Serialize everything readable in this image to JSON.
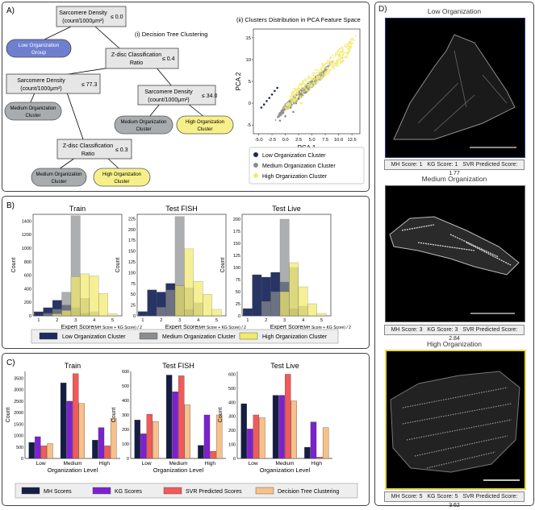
{
  "panelA": {
    "label": "A)",
    "tree_title": "(i) Decision Tree Clustering",
    "pca_title": "(ii) Clusters Distribution in PCA Feature Space",
    "nodes": {
      "n1_l1": "Sarcomere Density",
      "n1_l2": "(count/1000μm²)",
      "n1_op": "≤ 0.0",
      "leaf_low_l1": "Low Organization",
      "leaf_low_l2": "Group",
      "n2_l1": "Z-disc Classification",
      "n2_l2": "Ratio",
      "n2_op": "≤ 0.4",
      "n3_l1": "Sarcomere Density",
      "n3_l2": "(count/1000μm²)",
      "n3_op": "≤ 77.3",
      "n4_l1": "Sarcomere Density",
      "n4_l2": "(count/1000μm²)",
      "n4_op": "≤ 34.0",
      "leaf_med1_l1": "Medium Organization",
      "leaf_med1_l2": "Cluster",
      "leaf_med2_l1": "Medium Organization",
      "leaf_med2_l2": "Cluster",
      "leaf_high1_l1": "High Organization",
      "leaf_high1_l2": "Cluster",
      "n5_l1": "Z-disc Classification",
      "n5_l2": "Ratio",
      "n5_op": "≤ 0.3",
      "leaf_med3_l1": "Medium Organization",
      "leaf_med3_l2": "Cluster",
      "leaf_high2_l1": "High Organization",
      "leaf_high2_l2": "Cluster"
    },
    "pca": {
      "xlabel": "PCA 1",
      "ylabel": "PCA 2",
      "xticks": [
        "-5.0",
        "-2.5",
        "0.0",
        "2.5",
        "5.0",
        "7.5",
        "10.0",
        "12.5"
      ],
      "legend": [
        "Low Organization Cluster",
        "Medium Organization Cluster",
        "High Organization Cluster"
      ]
    }
  },
  "panelB": {
    "label": "B)",
    "xlabel": "Expert Score",
    "xlabel_sub": "(MH Score + KG Score) / 2",
    "ylabel": "Count",
    "legend": [
      "Low Organization Cluster",
      "Medium Organization Cluster",
      "High Organization Cluster"
    ]
  },
  "panelC": {
    "label": "C)",
    "xlabel": "Organization Level",
    "ylabel": "Count",
    "legend": [
      "MH Scores",
      "KG Scores",
      "SVR Predicted Scores",
      "Decision Tree Clustering"
    ]
  },
  "panelD": {
    "label": "D)",
    "images": [
      {
        "title": "Low Organization",
        "mh": "MH Score: 1",
        "kg": "KG Score: 1",
        "svr": "SVR Predicted Score: 1.77"
      },
      {
        "title": "Medium Organization",
        "mh": "MH Score: 3",
        "kg": "KG Score: 3",
        "svr": "SVR Predicted Score: 2.84"
      },
      {
        "title": "High Organization",
        "mh": "MH Score: 5",
        "kg": "KG Score: 5",
        "svr": "SVR Predicted Score: 3.62"
      }
    ]
  },
  "colors": {
    "low": "#1c2a5c",
    "medium": "#8a8d8f",
    "high": "#f2ea6a",
    "mh": "#151d44",
    "kg": "#7b22d0",
    "svr": "#f05a5a",
    "dt": "#f8c08a"
  },
  "chart_data": [
    {
      "type": "scatter",
      "title": "(ii) Clusters Distribution in PCA Feature Space",
      "xlabel": "PCA 1",
      "ylabel": "PCA 2",
      "xlim": [
        -6,
        14
      ],
      "ylim": [
        -7,
        17
      ],
      "series": [
        {
          "name": "Low Organization Cluster",
          "x": [
            -4.5,
            -4.0,
            -3.5,
            -3.0,
            -2.5,
            -2.0,
            -1.5
          ],
          "y": [
            -1.0,
            -0.3,
            0.5,
            1.2,
            2.0,
            2.8,
            3.5
          ]
        },
        {
          "name": "Medium Organization Cluster",
          "x": [
            -1,
            0,
            1,
            2,
            3,
            4,
            5,
            -0.5,
            1.5,
            2.5
          ],
          "y": [
            -4,
            -3,
            -1,
            0,
            2,
            3,
            5,
            -2,
            -2,
            1
          ]
        },
        {
          "name": "High Organization Cluster",
          "x": [
            0,
            2,
            4,
            6,
            8,
            10,
            12,
            3,
            5,
            7
          ],
          "y": [
            -1,
            1,
            3,
            6,
            8,
            11,
            14,
            0,
            4,
            9
          ]
        }
      ]
    },
    {
      "type": "bar",
      "title": "Train",
      "categories": [
        "1",
        "1.5",
        "2",
        "2.5",
        "3",
        "3.5",
        "4",
        "4.5",
        "5"
      ],
      "series": [
        {
          "name": "Low Organization Cluster",
          "values": [
            60,
            120,
            230,
            160,
            120,
            40,
            0,
            0,
            0
          ]
        },
        {
          "name": "Medium Organization Cluster",
          "values": [
            0,
            40,
            100,
            350,
            1480,
            260,
            60,
            0,
            0
          ]
        },
        {
          "name": "High Organization Cluster",
          "values": [
            0,
            0,
            30,
            80,
            580,
            620,
            590,
            330,
            30
          ]
        }
      ],
      "xlabel": "Expert Score (MH Score + KG Score) / 2",
      "ylabel": "Count",
      "ylim": [
        0,
        1500
      ],
      "yticks": [
        0,
        200,
        400,
        600,
        800,
        1000,
        1200,
        1400
      ]
    },
    {
      "type": "bar",
      "title": "Test FISH",
      "categories": [
        "1",
        "1.5",
        "2",
        "2.5",
        "3",
        "3.5",
        "4",
        "4.5",
        "5"
      ],
      "series": [
        {
          "name": "Low Organization Cluster",
          "values": [
            10,
            60,
            55,
            75,
            70,
            15,
            0,
            0,
            0
          ]
        },
        {
          "name": "Medium Organization Cluster",
          "values": [
            0,
            0,
            20,
            60,
            230,
            65,
            30,
            0,
            0
          ]
        },
        {
          "name": "High Organization Cluster",
          "values": [
            0,
            0,
            0,
            0,
            70,
            155,
            80,
            50,
            15
          ]
        }
      ],
      "xlabel": "Expert Score (MH Score + KG Score) / 2",
      "ylabel": "Count",
      "ylim": [
        0,
        235
      ],
      "yticks": [
        0,
        25,
        50,
        75,
        100,
        125,
        150,
        175,
        200,
        225
      ]
    },
    {
      "type": "bar",
      "title": "Test Live",
      "categories": [
        "1",
        "1.5",
        "2",
        "2.5",
        "3",
        "3.5",
        "4",
        "4.5",
        "5"
      ],
      "series": [
        {
          "name": "Low Organization Cluster",
          "values": [
            15,
            85,
            80,
            90,
            70,
            15,
            0,
            0,
            0
          ]
        },
        {
          "name": "Medium Organization Cluster",
          "values": [
            0,
            0,
            30,
            50,
            200,
            100,
            20,
            0,
            0
          ]
        },
        {
          "name": "High Organization Cluster",
          "values": [
            0,
            0,
            0,
            0,
            50,
            110,
            60,
            25,
            5
          ]
        }
      ],
      "xlabel": "Expert Score (MH Score + KG Score) / 2",
      "ylabel": "Count",
      "ylim": [
        0,
        210
      ],
      "yticks": [
        0,
        25,
        50,
        75,
        100,
        125,
        150,
        175,
        200
      ]
    },
    {
      "type": "bar",
      "title": "Train",
      "categories": [
        "Low",
        "Medium",
        "High"
      ],
      "series": [
        {
          "name": "MH Scores",
          "values": [
            700,
            3300,
            800
          ]
        },
        {
          "name": "KG Scores",
          "values": [
            950,
            2500,
            1350
          ]
        },
        {
          "name": "SVR Predicted Scores",
          "values": [
            550,
            3700,
            550
          ]
        },
        {
          "name": "Decision Tree Clustering",
          "values": [
            650,
            2400,
            1750
          ]
        }
      ],
      "xlabel": "Organization Level",
      "ylabel": "Count",
      "ylim": [
        0,
        3800
      ],
      "yticks": [
        0,
        500,
        1000,
        1500,
        2000,
        2500,
        3000,
        3500
      ]
    },
    {
      "type": "bar",
      "title": "Test FISH",
      "categories": [
        "Low",
        "Medium",
        "High"
      ],
      "series": [
        {
          "name": "MH Scores",
          "values": [
            265,
            575,
            90
          ]
        },
        {
          "name": "KG Scores",
          "values": [
            170,
            460,
            300
          ]
        },
        {
          "name": "SVR Predicted Scores",
          "values": [
            305,
            570,
            50
          ]
        },
        {
          "name": "Decision Tree Clustering",
          "values": [
            255,
            370,
            300
          ]
        }
      ],
      "xlabel": "Organization Level",
      "ylabel": "Count",
      "ylim": [
        0,
        600
      ],
      "yticks": [
        0,
        100,
        200,
        300,
        400,
        500,
        600
      ]
    },
    {
      "type": "bar",
      "title": "Test Live",
      "categories": [
        "Low",
        "Medium",
        "High"
      ],
      "series": [
        {
          "name": "MH Scores",
          "values": [
            390,
            450,
            80
          ]
        },
        {
          "name": "KG Scores",
          "values": [
            210,
            450,
            260
          ]
        },
        {
          "name": "SVR Predicted Scores",
          "values": [
            310,
            600,
            10
          ]
        },
        {
          "name": "Decision Tree Clustering",
          "values": [
            290,
            410,
            220
          ]
        }
      ],
      "xlabel": "Organization Level",
      "ylabel": "Count",
      "ylim": [
        0,
        620
      ],
      "yticks": [
        0,
        100,
        200,
        300,
        400,
        500,
        600
      ]
    }
  ]
}
